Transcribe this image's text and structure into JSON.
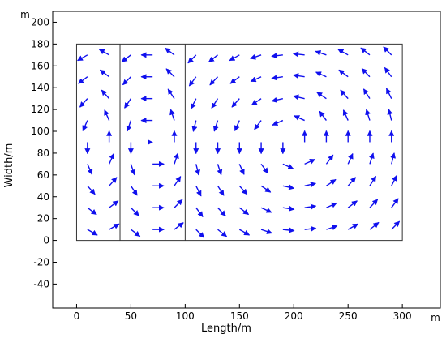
{
  "chart_data": {
    "type": "quiver",
    "xlabel": "Length/m",
    "ylabel": "Width/m",
    "x_unit": "m",
    "y_unit": "m",
    "xlim": [
      -22,
      335
    ],
    "ylim": [
      -62,
      210
    ],
    "xticks": [
      0,
      50,
      100,
      150,
      200,
      250,
      300
    ],
    "yticks": [
      -40,
      -20,
      0,
      20,
      40,
      60,
      80,
      100,
      120,
      140,
      160,
      180,
      200
    ],
    "grid": false,
    "domain_outline": [
      [
        0,
        0
      ],
      [
        300,
        0
      ],
      [
        300,
        180
      ],
      [
        0,
        180
      ]
    ],
    "divider_lines_x": [
      40,
      100
    ],
    "arrow_color": "#1010ee",
    "flow_pattern": "counter-clockwise circulation cells",
    "grid_x": [
      10,
      30,
      50,
      70,
      90,
      110,
      130,
      150,
      170,
      190,
      210,
      230,
      250,
      270,
      290
    ],
    "grid_y": [
      10,
      30,
      50,
      70,
      90,
      110,
      130,
      150,
      170
    ]
  }
}
